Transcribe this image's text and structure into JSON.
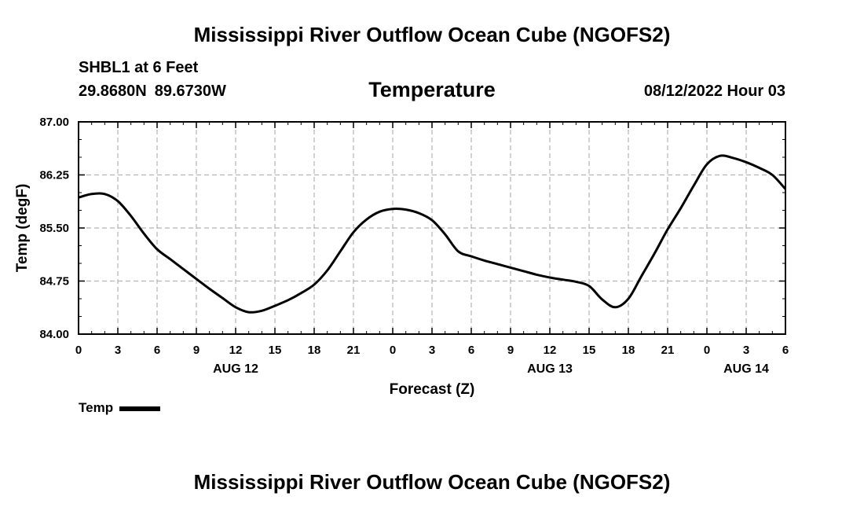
{
  "header": {
    "title": "Mississippi River Outflow Ocean Cube (NGOFS2)",
    "station": "SHBL1 at 6 Feet",
    "lat": "29.8680N",
    "lon": "89.6730W",
    "parameter": "Temperature",
    "datetime": "08/12/2022 Hour 03"
  },
  "footer": {
    "title": "Mississippi River Outflow Ocean Cube (NGOFS2)"
  },
  "legend": {
    "label": "Temp"
  },
  "chart_data": {
    "type": "line",
    "title": "Temperature",
    "xlabel": "Forecast (Z)",
    "ylabel": "Temp (degF)",
    "xlim": [
      0,
      54
    ],
    "ylim": [
      84.0,
      87.0
    ],
    "grid": true,
    "legend_position": "bottom-left",
    "x_ticks": [
      {
        "x": 0,
        "label": "0"
      },
      {
        "x": 3,
        "label": "3"
      },
      {
        "x": 6,
        "label": "6"
      },
      {
        "x": 9,
        "label": "9"
      },
      {
        "x": 12,
        "label": "12"
      },
      {
        "x": 15,
        "label": "15"
      },
      {
        "x": 18,
        "label": "18"
      },
      {
        "x": 21,
        "label": "21"
      },
      {
        "x": 24,
        "label": "0"
      },
      {
        "x": 27,
        "label": "3"
      },
      {
        "x": 30,
        "label": "6"
      },
      {
        "x": 33,
        "label": "9"
      },
      {
        "x": 36,
        "label": "12"
      },
      {
        "x": 39,
        "label": "15"
      },
      {
        "x": 42,
        "label": "18"
      },
      {
        "x": 45,
        "label": "21"
      },
      {
        "x": 48,
        "label": "0"
      },
      {
        "x": 51,
        "label": "3"
      },
      {
        "x": 54,
        "label": "6"
      }
    ],
    "date_labels": [
      {
        "x": 12,
        "label": "AUG 12"
      },
      {
        "x": 36,
        "label": "AUG 13"
      },
      {
        "x": 51,
        "label": "AUG 14"
      }
    ],
    "y_ticks": [
      84.0,
      84.75,
      85.5,
      86.25,
      87.0
    ],
    "y_tick_labels": [
      "84.00",
      "84.75",
      "85.50",
      "86.25",
      "87.00"
    ],
    "series": [
      {
        "name": "Temp",
        "color": "#000000",
        "x": [
          0,
          1,
          2,
          3,
          4,
          5,
          6,
          7,
          8,
          9,
          10,
          11,
          12,
          13,
          14,
          15,
          16,
          17,
          18,
          19,
          20,
          21,
          22,
          23,
          24,
          25,
          26,
          27,
          28,
          29,
          30,
          31,
          32,
          33,
          34,
          35,
          36,
          37,
          38,
          39,
          40,
          41,
          42,
          43,
          44,
          45,
          46,
          47,
          48,
          49,
          50,
          51,
          52,
          53,
          54
        ],
        "values": [
          85.93,
          85.98,
          85.98,
          85.88,
          85.67,
          85.42,
          85.2,
          85.06,
          84.92,
          84.78,
          84.64,
          84.51,
          84.38,
          84.31,
          84.33,
          84.4,
          84.48,
          84.58,
          84.7,
          84.9,
          85.17,
          85.44,
          85.62,
          85.73,
          85.77,
          85.76,
          85.71,
          85.61,
          85.41,
          85.17,
          85.1,
          85.04,
          84.99,
          84.94,
          84.89,
          84.84,
          84.8,
          84.77,
          84.74,
          84.68,
          84.49,
          84.38,
          84.5,
          84.82,
          85.14,
          85.48,
          85.78,
          86.1,
          86.4,
          86.52,
          86.49,
          86.43,
          86.35,
          86.25,
          86.05
        ]
      }
    ]
  }
}
